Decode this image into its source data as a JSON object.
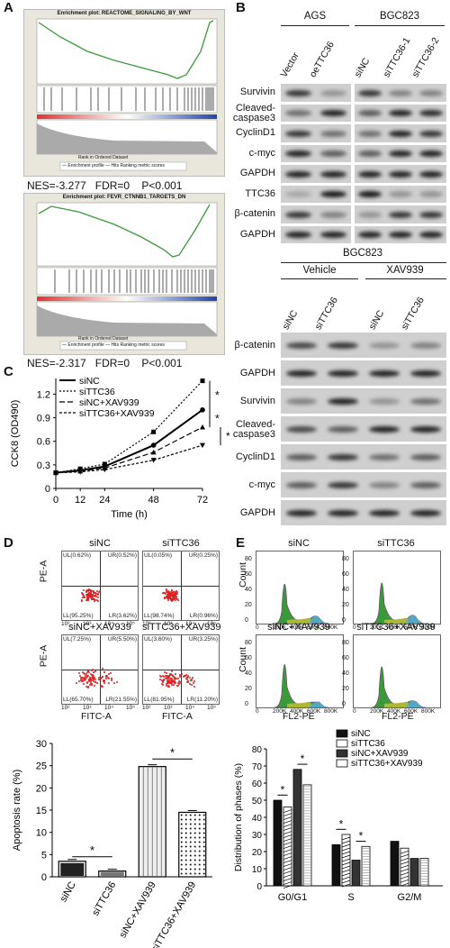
{
  "panels": {
    "a": "A",
    "b": "B",
    "c": "C",
    "d": "D",
    "e": "E"
  },
  "gsea": [
    {
      "title": "Enrichment plot: REACTOME_SIGNALING_BY_WNT",
      "stats": {
        "nes": "NES=-3.277",
        "fdr": "FDR=0",
        "p": "P<0.001"
      },
      "legend": "— Enrichment profile  — Hits  Ranking metric scores",
      "xaxis": "Rank in Ordered Dataset"
    },
    {
      "title": "Enrichment plot: FEVR_CTNNB1_TARGETS_DN",
      "stats": {
        "nes": "NES=-2.317",
        "fdr": "FDR=0",
        "p": "P<0.001"
      },
      "legend": "— Enrichment profile  — Hits  Ranking metric scores",
      "xaxis": "Rank in Ordered Dataset"
    }
  ],
  "wb1": {
    "groups": [
      "AGS",
      "BGC823"
    ],
    "columns": [
      "Vector",
      "oeTTC36",
      "siNC",
      "siTTC36-1",
      "siTTC36-2"
    ],
    "rows": [
      "Survivin",
      "Cleaved-\ncaspase3",
      "CyclinD1",
      "c-myc",
      "GAPDH",
      "TTC36",
      "β-catenin",
      "GAPDH"
    ]
  },
  "wb2": {
    "cell": "BGC823",
    "groups": [
      "Vehicle",
      "XAV939"
    ],
    "columns": [
      "siNC",
      "siTTC36",
      "siNC",
      "siTTC36"
    ],
    "rows": [
      "β-catenin",
      "GAPDH",
      "Survivin",
      "Cleaved-\ncaspase3",
      "CyclinD1",
      "c-myc",
      "GAPDH"
    ]
  },
  "chart_data": [
    {
      "type": "line",
      "title": "",
      "xlabel": "Time (h)",
      "ylabel": "CCK8 (OD490)",
      "x": [
        0,
        12,
        24,
        48,
        72
      ],
      "ylim": [
        0,
        1.4
      ],
      "yticks": [
        "0",
        "0.3",
        "0.6",
        "0.9",
        "1.2"
      ],
      "series": [
        {
          "name": "siNC",
          "values": [
            0.2,
            0.23,
            0.28,
            0.55,
            1.0
          ]
        },
        {
          "name": "siTTC36",
          "values": [
            0.2,
            0.25,
            0.31,
            0.72,
            1.37
          ]
        },
        {
          "name": "siNC+XAV939",
          "values": [
            0.2,
            0.22,
            0.26,
            0.46,
            0.78
          ]
        },
        {
          "name": "siTTC36+XAV939",
          "values": [
            0.2,
            0.21,
            0.24,
            0.36,
            0.55
          ]
        }
      ],
      "annotations": [
        "*",
        "*",
        "**"
      ]
    },
    {
      "type": "bar",
      "title": "",
      "ylabel": "Apoptosis rate (%)",
      "ylim": [
        0,
        30
      ],
      "yticks": [
        "0",
        "5",
        "10",
        "15",
        "20",
        "25",
        "30"
      ],
      "categories": [
        "siNC",
        "siTTC36",
        "siNC+XAV939",
        "siTTC36+XAV939"
      ],
      "values": [
        3.5,
        1.3,
        24.8,
        14.5
      ],
      "annotations": [
        "*",
        "*"
      ]
    },
    {
      "type": "bar",
      "title": "",
      "ylabel": "Distribution of phases (%)",
      "ylim": [
        0,
        80
      ],
      "yticks": [
        "0",
        "10",
        "20",
        "30",
        "40",
        "50",
        "60",
        "70",
        "80"
      ],
      "categories": [
        "G0/G1",
        "S",
        "G2/M"
      ],
      "series": [
        {
          "name": "siNC",
          "values": [
            50,
            24,
            26
          ]
        },
        {
          "name": "siTTC36",
          "values": [
            46,
            30,
            22
          ]
        },
        {
          "name": "siNC+XAV939",
          "values": [
            68,
            15,
            16
          ]
        },
        {
          "name": "siTTC36+XAV939",
          "values": [
            59,
            23,
            16
          ]
        }
      ],
      "annotations": [
        "*",
        "*",
        "*",
        "*"
      ]
    }
  ],
  "flow": {
    "titles": [
      "siNC",
      "siTTC36",
      "siNC+XAV939",
      "siTTC36+XAV939"
    ],
    "quads": [
      [
        "UL(0.62%)",
        "UR(0.52%)",
        "LL(95.25%)",
        "LR(3.62%)"
      ],
      [
        "UL(0.05%)",
        "UR(0.25%)",
        "LL(98.74%)",
        "LR(0.96%)"
      ],
      [
        "UL(7.25%)",
        "UR(5.50%)",
        "LL(65.70%)",
        "LR(21.55%)"
      ],
      [
        "UL(3.60%)",
        "UR(3.25%)",
        "LL(81.95%)",
        "LR(11.20%)"
      ]
    ],
    "ylabel": "PE-A",
    "xlabel": "FITC-A",
    "ticks": [
      "10²",
      "10³",
      "10⁴",
      "10⁵"
    ]
  },
  "cycle": {
    "titles": [
      "siNC",
      "siTTC36",
      "siNC+XAV939",
      "siTTC36+XAV939"
    ],
    "ylabel": "Count",
    "xlabel": "FL2-PE",
    "xticks": [
      "0",
      "200K",
      "400K",
      "600K",
      "800K"
    ],
    "yticks": [
      "0",
      "20",
      "40",
      "60",
      "80"
    ]
  },
  "colors": {
    "green": "#3a9a3a",
    "red": "#d22",
    "blue": "#2a5db0",
    "blot_bg": "#cfcfcf"
  }
}
